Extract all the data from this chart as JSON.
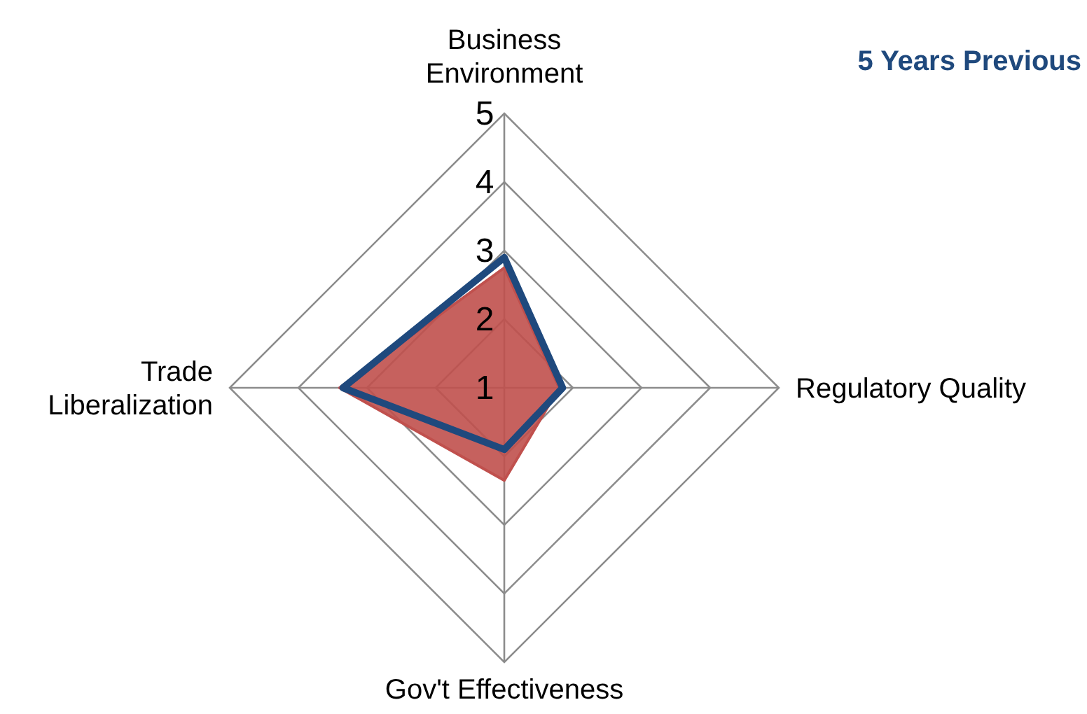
{
  "chart_data": {
    "type": "radar",
    "categories": [
      "Business Environment",
      "Regulatory Quality",
      "Gov't Effectiveness",
      "Trade Liberalization"
    ],
    "ylim": [
      1,
      5
    ],
    "yticks": [
      1,
      2,
      3,
      4,
      5
    ],
    "series": [
      {
        "color": "#c0504d",
        "values": [
          2.75,
          1.8,
          2.35,
          3.4
        ]
      },
      {
        "name": "5 Years Previous",
        "color": "#1f497d",
        "values": [
          2.9,
          1.85,
          1.9,
          3.35
        ]
      }
    ]
  }
}
